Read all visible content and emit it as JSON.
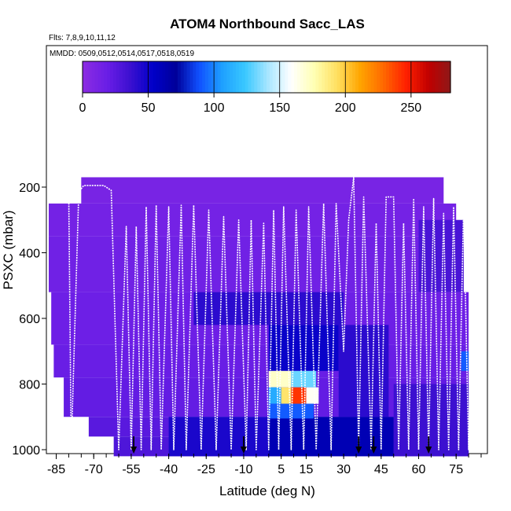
{
  "chart_data": {
    "type": "heatmap",
    "title": "ATOM4 Northbound Sacc_LAS",
    "flights_note": "Flts: 7,8,9,10,11,12",
    "dates_note": "MMDD: 0509,0512,0514,0517,0518,0519",
    "xlabel": "Latitude (deg N)",
    "ylabel": "PSXC (mbar)",
    "xlim": [
      -88,
      85
    ],
    "ylim": [
      1020,
      0
    ],
    "x_ticks": [
      -85,
      -70,
      -55,
      -40,
      -25,
      -10,
      5,
      15,
      30,
      45,
      60,
      75
    ],
    "y_ticks": [
      200,
      400,
      600,
      800,
      1000
    ],
    "colorbar": {
      "range": [
        0,
        280
      ],
      "ticks": [
        0,
        50,
        100,
        150,
        200,
        250
      ],
      "colors": [
        "#8a2be2",
        "#6a1ee6",
        "#3c10d0",
        "#0000c8",
        "#00009a",
        "#1050ff",
        "#1ea0ff",
        "#39c8ff",
        "#a8e6ff",
        "#ffffff",
        "#ffffb4",
        "#ffe060",
        "#ffa500",
        "#ff6a00",
        "#ff2000",
        "#c00000",
        "#8b1a1a"
      ]
    },
    "bottom_arrows_lat": [
      -54,
      -10,
      36,
      42,
      64
    ],
    "curtain_rows": [
      {
        "lat_from": -75,
        "lat_to": 70,
        "p_from": 170,
        "p_to": 250,
        "value": 10
      },
      {
        "lat_from": -88,
        "lat_to": 75,
        "p_from": 250,
        "p_to": 350,
        "value": 12
      },
      {
        "lat_from": -88,
        "lat_to": 78,
        "p_from": 350,
        "p_to": 520,
        "value": 14
      },
      {
        "lat_from": -87,
        "lat_to": 80,
        "p_from": 520,
        "p_to": 680,
        "value": 16
      },
      {
        "lat_from": -86,
        "lat_to": 80,
        "p_from": 680,
        "p_to": 780,
        "value": 18
      },
      {
        "lat_from": -82,
        "lat_to": 80,
        "p_from": 780,
        "p_to": 900,
        "value": 20
      },
      {
        "lat_from": -72,
        "lat_to": 80,
        "p_from": 900,
        "p_to": 960,
        "value": 24
      },
      {
        "lat_from": -62,
        "lat_to": 80,
        "p_from": 960,
        "p_to": 1020,
        "value": 28
      }
    ],
    "enhanced_cells": [
      {
        "lat_from": -30,
        "lat_to": 30,
        "p_from": 520,
        "p_to": 620,
        "value": 40
      },
      {
        "lat_from": 0,
        "lat_to": 28,
        "p_from": 620,
        "p_to": 760,
        "value": 50
      },
      {
        "lat_from": 28,
        "lat_to": 48,
        "p_from": 620,
        "p_to": 900,
        "value": 40
      },
      {
        "lat_from": -40,
        "lat_to": 0,
        "p_from": 900,
        "p_to": 1020,
        "value": 45
      },
      {
        "lat_from": 0,
        "lat_to": 50,
        "p_from": 900,
        "p_to": 1020,
        "value": 60
      },
      {
        "lat_from": 50,
        "lat_to": 80,
        "p_from": 800,
        "p_to": 1020,
        "value": 35
      },
      {
        "lat_from": 60,
        "lat_to": 78,
        "p_from": 300,
        "p_to": 520,
        "value": 30
      },
      {
        "lat_from": 77,
        "lat_to": 80,
        "p_from": 700,
        "p_to": 760,
        "value": 90
      },
      {
        "lat_from": 0,
        "lat_to": 9,
        "p_from": 760,
        "p_to": 810,
        "value": 170
      },
      {
        "lat_from": 9,
        "lat_to": 19,
        "p_from": 760,
        "p_to": 810,
        "value": 130
      },
      {
        "lat_from": 0,
        "lat_to": 5,
        "p_from": 810,
        "p_to": 860,
        "value": 110
      },
      {
        "lat_from": 5,
        "lat_to": 9,
        "p_from": 810,
        "p_to": 860,
        "value": 190
      },
      {
        "lat_from": 9,
        "lat_to": 15,
        "p_from": 810,
        "p_to": 860,
        "value": 240
      },
      {
        "lat_from": 15,
        "lat_to": 20,
        "p_from": 810,
        "p_to": 860,
        "value": 160
      },
      {
        "lat_from": 0,
        "lat_to": 18,
        "p_from": 860,
        "p_to": 905,
        "value": 90
      }
    ],
    "flight_track": [
      [
        -88,
        240
      ],
      [
        -87,
        215
      ],
      [
        -80,
        213
      ],
      [
        -79,
        1000
      ],
      [
        -76,
        215
      ],
      [
        -74,
        195
      ],
      [
        -66,
        195
      ],
      [
        -63,
        210
      ],
      [
        -60,
        1000
      ],
      [
        -57,
        320
      ],
      [
        -55,
        1000
      ],
      [
        -53,
        320
      ],
      [
        -51,
        1000
      ],
      [
        -49,
        260
      ],
      [
        -47,
        1000
      ],
      [
        -45,
        255
      ],
      [
        -43,
        1000
      ],
      [
        -40,
        260
      ],
      [
        -38,
        1000
      ],
      [
        -35,
        255
      ],
      [
        -33,
        1000
      ],
      [
        -30,
        255
      ],
      [
        -27,
        1000
      ],
      [
        -24,
        270
      ],
      [
        -21,
        1000
      ],
      [
        -18,
        290
      ],
      [
        -15,
        1000
      ],
      [
        -12,
        300
      ],
      [
        -9,
        1000
      ],
      [
        -7,
        300
      ],
      [
        -5,
        1000
      ],
      [
        -2,
        310
      ],
      [
        0,
        1000
      ],
      [
        2,
        270
      ],
      [
        4,
        1000
      ],
      [
        6,
        260
      ],
      [
        9,
        1000
      ],
      [
        11,
        270
      ],
      [
        14,
        1000
      ],
      [
        16,
        260
      ],
      [
        19,
        1000
      ],
      [
        22,
        250
      ],
      [
        25,
        1000
      ],
      [
        27,
        250
      ],
      [
        30,
        700
      ],
      [
        32,
        300
      ],
      [
        34,
        170
      ],
      [
        36,
        1000
      ],
      [
        38,
        230
      ],
      [
        41,
        1000
      ],
      [
        43,
        310
      ],
      [
        45,
        1000
      ],
      [
        47,
        230
      ],
      [
        50,
        230
      ],
      [
        52,
        1000
      ],
      [
        54,
        310
      ],
      [
        56,
        1000
      ],
      [
        58,
        235
      ],
      [
        60,
        1000
      ],
      [
        62,
        260
      ],
      [
        64,
        1000
      ],
      [
        66,
        235
      ],
      [
        68,
        1000
      ],
      [
        70,
        280
      ],
      [
        72,
        1000
      ],
      [
        74,
        260
      ],
      [
        76,
        1000
      ],
      [
        78,
        260
      ],
      [
        80,
        1000
      ],
      [
        82,
        250
      ]
    ]
  }
}
